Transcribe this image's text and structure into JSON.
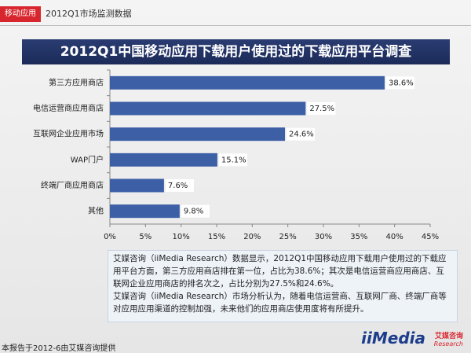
{
  "header": {
    "tag": "移动应用",
    "section": "2012Q1市场监测数据"
  },
  "chart_data": {
    "type": "bar",
    "orientation": "horizontal",
    "title": "2012Q1中国移动应用下载用户使用过的下载应用平台调查",
    "categories": [
      "第三方应用商店",
      "电信运营商应用商店",
      "互联网企业应用市场",
      "WAP门户",
      "终端厂商应用商店",
      "其他"
    ],
    "values": [
      38.6,
      27.5,
      24.6,
      15.1,
      7.6,
      9.8
    ],
    "value_labels": [
      "38.6%",
      "27.5%",
      "24.6%",
      "15.1%",
      "7.6%",
      "9.8%"
    ],
    "color": "#3c5fa6",
    "xlim": [
      0,
      45
    ],
    "xticks": [
      {
        "value": 0,
        "label": "0%"
      },
      {
        "value": 5,
        "label": "5%"
      },
      {
        "value": 10,
        "label": "10%"
      },
      {
        "value": 15,
        "label": "15%"
      },
      {
        "value": 20,
        "label": "20%"
      },
      {
        "value": 25,
        "label": "25%"
      },
      {
        "value": 30,
        "label": "30%"
      },
      {
        "value": 35,
        "label": "35%"
      },
      {
        "value": 40,
        "label": "40%"
      },
      {
        "value": 45,
        "label": "45%"
      }
    ]
  },
  "notes": [
    "艾媒咨询（iiMedia Research）数据显示，2012Q1中国移动应用下载用户使用过的下载应用平台方面，第三方应用商店排在第一位，占比为38.6%；其次是电信运营商应用商店、互联网企业应用商店的排名次之，占比分别为27.5%和24.6%。",
    "艾媒咨询（iiMedia Research）市场分析认为，随着电信运营商、互联网厂商、终端厂商等对应用应用渠道的控制加强，未来他们的应用商店使用度将有所提升。"
  ],
  "footer": {
    "source": "本报告于2012-6由艾媒咨询提供",
    "logo": "iiMedia",
    "logo_cn": "艾媒咨询",
    "logo_en": "Research"
  }
}
